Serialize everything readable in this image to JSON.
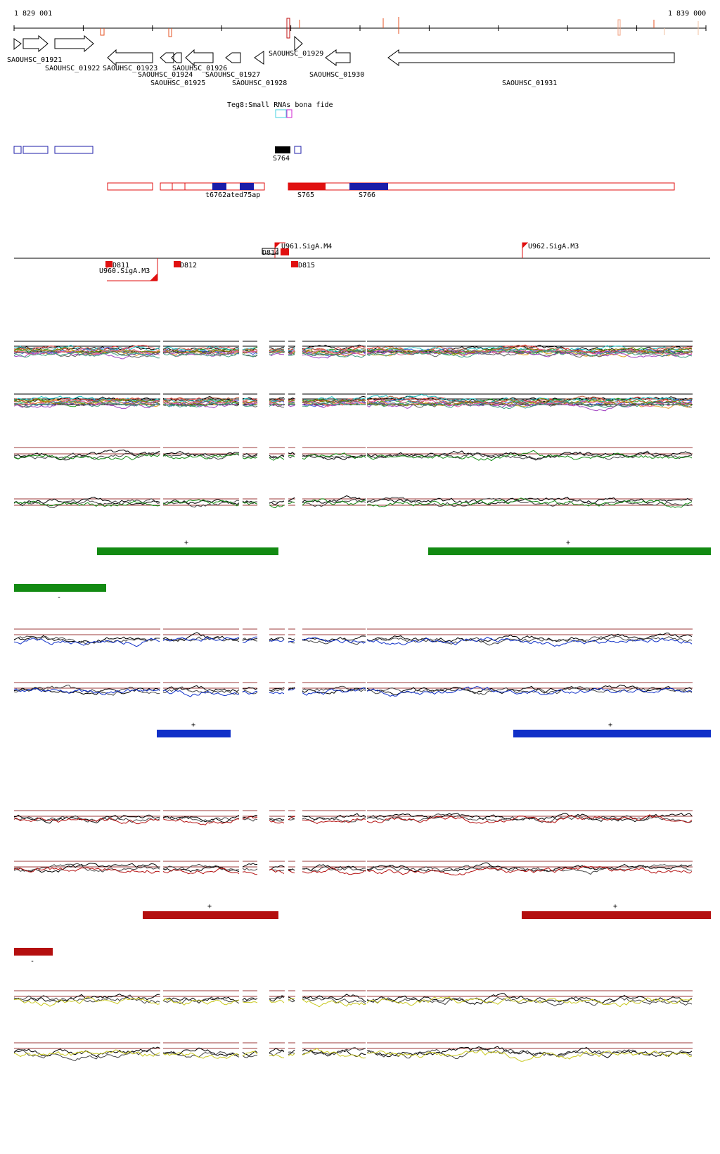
{
  "ruler": {
    "start": "1 829 001",
    "end": "1 839 000"
  },
  "genes": [
    {
      "name": "SAOUHSC_01921"
    },
    {
      "name": "SAOUHSC_01922"
    },
    {
      "name": "SAOUHSC_01923"
    },
    {
      "name": "SAOUHSC_01924"
    },
    {
      "name": "SAOUHSC_01925"
    },
    {
      "name": "SAOUHSC_01926"
    },
    {
      "name": "SAOUHSC_01927"
    },
    {
      "name": "SAOUHSC_01928"
    },
    {
      "name": "SAOUHSC_01929"
    },
    {
      "name": "SAOUHSC_01930"
    },
    {
      "name": "SAOUHSC_01931"
    }
  ],
  "srna_track": {
    "title": "Teg8:Small RNAs bona fide"
  },
  "segments_row1": [
    {
      "label": "S764"
    }
  ],
  "segments_row2": [
    {
      "label": "t6762ated75ap"
    },
    {
      "label": "S765"
    },
    {
      "label": "S766"
    }
  ],
  "promoters": [
    {
      "label": "U961.SigA.M4"
    },
    {
      "label": "U962.SigA.M3"
    },
    {
      "label": "U960.SigA.M3"
    },
    {
      "label": "D811"
    },
    {
      "label": "D812"
    },
    {
      "label": "D815"
    },
    {
      "label": "D814"
    }
  ],
  "strand_labels": {
    "plus": "+",
    "minus": "-"
  },
  "colors": {
    "gene_outline": "#000000",
    "segment_blue": "#1c1ca8",
    "segment_red": "#e01010",
    "green": "#128a12",
    "blue": "#1030c8",
    "darkred": "#b40f0f",
    "yellow": "#c8c81e",
    "threshold": "#9c3b3b"
  },
  "expression_groups": [
    {
      "color_key": "multi"
    },
    {
      "color_key": "green"
    },
    {
      "color_key": "blue"
    },
    {
      "color_key": "darkred"
    },
    {
      "color_key": "yellow"
    }
  ]
}
